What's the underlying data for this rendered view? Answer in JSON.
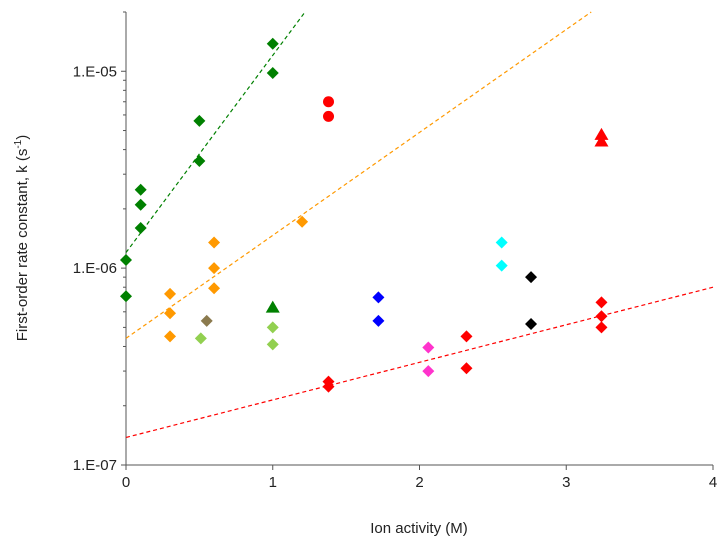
{
  "chart_data": {
    "type": "scatter",
    "title": "",
    "xlabel": "Ion activity (M)",
    "ylabel_main": "First-order rate constant, k (s",
    "ylabel_sup": "-1",
    "ylabel_end": ")",
    "xlim": [
      0,
      4
    ],
    "ylim": [
      1e-07,
      2e-05
    ],
    "yscale": "log",
    "grid": false,
    "legend": "none",
    "x_ticks": [
      {
        "v": 0,
        "label": "0"
      },
      {
        "v": 1,
        "label": "1"
      },
      {
        "v": 2,
        "label": "2"
      },
      {
        "v": 3,
        "label": "3"
      },
      {
        "v": 4,
        "label": "4"
      }
    ],
    "y_ticks": [
      {
        "v": 1e-07,
        "label": "1.E-07"
      },
      {
        "v": 1e-06,
        "label": "1.E-06"
      },
      {
        "v": 1e-05,
        "label": "1.E-05"
      }
    ],
    "series": [
      {
        "color": "#008000",
        "marker": "diamond",
        "points": [
          [
            0,
            7.2e-07
          ],
          [
            0,
            1.1e-06
          ],
          [
            0.1,
            1.6e-06
          ],
          [
            0.1,
            2.1e-06
          ],
          [
            0.1,
            2.5e-06
          ],
          [
            0.5,
            3.5e-06
          ],
          [
            0.5,
            5.6e-06
          ],
          [
            1.0,
            9.8e-06
          ],
          [
            1.0,
            1.38e-05
          ]
        ]
      },
      {
        "color": "#008000",
        "marker": "triangle",
        "points": [
          [
            1.0,
            6.3e-07
          ]
        ]
      },
      {
        "color": "#ff9900",
        "marker": "diamond",
        "points": [
          [
            0.3,
            4.5e-07
          ],
          [
            0.3,
            5.9e-07
          ],
          [
            0.3,
            7.4e-07
          ],
          [
            0.6,
            7.9e-07
          ],
          [
            0.6,
            1e-06
          ],
          [
            0.6,
            1.35e-06
          ],
          [
            1.2,
            1.72e-06
          ]
        ]
      },
      {
        "color": "#8b7a4e",
        "marker": "diamond",
        "points": [
          [
            0.55,
            5.4e-07
          ]
        ]
      },
      {
        "color": "#92d050",
        "marker": "diamond",
        "points": [
          [
            0.51,
            4.4e-07
          ],
          [
            1.0,
            4.1e-07
          ],
          [
            1.0,
            5e-07
          ]
        ]
      },
      {
        "color": "#ff0000",
        "marker": "circle",
        "points": [
          [
            1.38,
            5.9e-06
          ],
          [
            1.38,
            7e-06
          ]
        ]
      },
      {
        "color": "#ff0000",
        "marker": "diamond",
        "points": [
          [
            1.38,
            2.5e-07
          ],
          [
            1.38,
            2.65e-07
          ],
          [
            2.32,
            3.1e-07
          ],
          [
            2.32,
            4.5e-07
          ],
          [
            3.24,
            5e-07
          ],
          [
            3.24,
            5.7e-07
          ],
          [
            3.24,
            6.7e-07
          ]
        ]
      },
      {
        "color": "#ff0000",
        "marker": "triangle",
        "points": [
          [
            3.24,
            4.4e-06
          ],
          [
            3.24,
            4.75e-06
          ]
        ]
      },
      {
        "color": "#0000ff",
        "marker": "diamond",
        "points": [
          [
            1.72,
            5.4e-07
          ],
          [
            1.72,
            7.1e-07
          ]
        ]
      },
      {
        "color": "#ff33cc",
        "marker": "diamond",
        "points": [
          [
            2.06,
            3e-07
          ],
          [
            2.06,
            3.95e-07
          ]
        ]
      },
      {
        "color": "#00ffff",
        "marker": "diamond",
        "points": [
          [
            2.56,
            1.03e-06
          ],
          [
            2.56,
            1.35e-06
          ]
        ]
      },
      {
        "color": "#000000",
        "marker": "diamond",
        "points": [
          [
            2.76,
            5.2e-07
          ],
          [
            2.76,
            9e-07
          ]
        ]
      }
    ],
    "trendlines": [
      {
        "color": "#008000",
        "x": [
          0,
          1.22
        ],
        "y": [
          1.2e-06,
          2e-05
        ]
      },
      {
        "color": "#ff9900",
        "x": [
          0,
          3.17
        ],
        "y": [
          4.4e-07,
          2e-05
        ]
      },
      {
        "color": "#ff0000",
        "x": [
          0,
          4
        ],
        "y": [
          1.38e-07,
          8e-07
        ]
      }
    ]
  }
}
